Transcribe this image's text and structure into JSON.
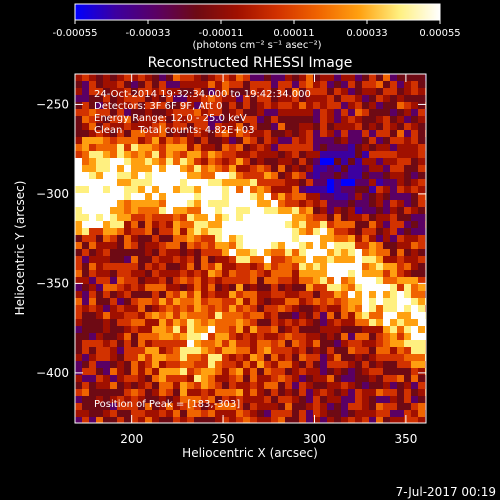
{
  "colorbar": {
    "tick_labels": [
      "-0.00055",
      "-0.00033",
      "-0.00011",
      "0.00011",
      "0.00033",
      "0.00055"
    ],
    "tick_values": [
      -0.00055,
      -0.00033,
      -0.00011,
      0.00011,
      0.00033,
      0.00055
    ],
    "range": [
      -0.00055,
      0.00055
    ],
    "units_label": "(photons cm⁻² s⁻¹ asec⁻²)",
    "colors": [
      "#0000ff",
      "#3c00a0",
      "#5a0064",
      "#6e0a14",
      "#a01000",
      "#d23200",
      "#f06400",
      "#ffa010",
      "#fff080",
      "#ffffff"
    ]
  },
  "chart_data": {
    "type": "heatmap",
    "title": "Reconstructed RHESSI Image",
    "xlabel": "Heliocentric X (arcsec)",
    "ylabel": "Heliocentric Y (arcsec)",
    "xlim": [
      169,
      361
    ],
    "ylim": [
      -428,
      -233
    ],
    "xticks": [
      200,
      250,
      300,
      350
    ],
    "yticks": [
      -250,
      -300,
      -350,
      -400
    ],
    "annotations": [
      "24-Oct-2014 19:32:34.000 to 19:42:34.000",
      "Detectors: 3F 6F 9F, Att 0",
      "Energy Range: 12.0 - 25.0 keV",
      "Clean     Total counts: 4.82E+03"
    ],
    "peak_label": "Position of Peak = [183,-303]",
    "peak_position": [
      183,
      -303
    ],
    "value_range": [
      -0.00055,
      0.00055
    ]
  },
  "footer": {
    "date": "7-Jul-2017 00:19"
  }
}
